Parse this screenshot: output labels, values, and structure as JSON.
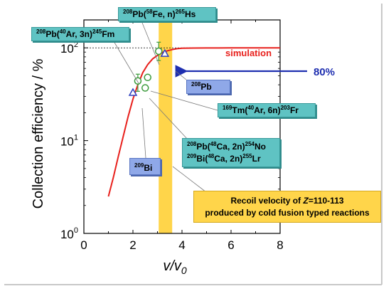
{
  "chart_data": {
    "type": "scatter",
    "xlabel": "v/v",
    "xlabel_sub": "0",
    "ylabel": "Collection efficiency / %",
    "xlim": [
      0,
      8
    ],
    "ylim": [
      1,
      200
    ],
    "yscale": "log",
    "x_ticks": [
      "0",
      "2",
      "4",
      "6",
      "8"
    ],
    "y_ticks": [
      {
        "value": 1,
        "base": "10",
        "exp": "0"
      },
      {
        "value": 10,
        "base": "10",
        "exp": "1"
      },
      {
        "value": 100,
        "base": "10",
        "exp": "2"
      }
    ],
    "reference_line": {
      "y": 100,
      "style": "dashed"
    },
    "simulation": {
      "name": "simulation",
      "color": "#e8201c",
      "x": [
        1.0,
        1.2,
        1.4,
        1.6,
        1.8,
        2.0,
        2.2,
        2.4,
        2.6,
        2.8,
        3.0,
        3.2,
        3.4,
        3.6,
        3.8,
        4.0,
        4.5,
        5.0,
        5.5,
        6.0,
        7.0,
        8.0
      ],
      "y": [
        2.5,
        4.0,
        6.7,
        11,
        18,
        28,
        40,
        54,
        66,
        76,
        83,
        89,
        93,
        96,
        98,
        99,
        99.5,
        99.7,
        99.8,
        99.9,
        100,
        100
      ]
    },
    "points": [
      {
        "x": 2.0,
        "y": 33,
        "marker": "triangle",
        "color": "#2f3fbf"
      },
      {
        "x": 3.3,
        "y": 87,
        "marker": "triangle",
        "color": "#2f3fbf"
      },
      {
        "x": 2.2,
        "y": 44,
        "marker": "circle",
        "color": "#3a9a3a",
        "err_low": 34,
        "err_high": 52
      },
      {
        "x": 2.5,
        "y": 37,
        "marker": "circle",
        "color": "#3a9a3a"
      },
      {
        "x": 2.6,
        "y": 48,
        "marker": "circle",
        "color": "#3a9a3a"
      },
      {
        "x": 3.05,
        "y": 92,
        "marker": "circle",
        "color": "#3a9a3a",
        "err_low": 73,
        "err_high": 115
      }
    ],
    "band": {
      "x_from": 3.05,
      "x_to": 3.6,
      "color": "#ffd54a"
    },
    "annotations": {
      "simulation_label": "simulation",
      "percent_label": "80%",
      "fe_hs": {
        "p1": "208",
        "t1": "Pb(",
        "p2": "58",
        "t2": "Fe, n)",
        "p3": "265",
        "t3": "Hs"
      },
      "ar_fm": {
        "p1": "208",
        "t1": "Pb(",
        "p2": "40",
        "t2": "Ar, 3n)",
        "p3": "245",
        "t3": "Fm"
      },
      "pb208": {
        "p1": "208",
        "t1": "Pb"
      },
      "tm_fr": {
        "p1": "169",
        "t1": "Tm(",
        "p2": "40",
        "t2": "Ar, 6n)",
        "p3": "203",
        "t3": "Fr"
      },
      "no_lr": {
        "line1": {
          "p1": "208",
          "t1": "Pb(",
          "p2": "48",
          "t2": "Ca, 2n)",
          "p3": "254",
          "t3": "No"
        },
        "line2": {
          "p1": "209",
          "t1": "Bi(",
          "p2": "48",
          "t2": "Ca, 2n)",
          "p3": "255",
          "t3": "Lr"
        }
      },
      "bi209": {
        "p1": "209",
        "t1": "Bi"
      },
      "recoil": {
        "a": "Recoil velocity of ",
        "z": "Z",
        "b": "=110-113",
        "line2": "produced by cold fusion typed reactions"
      }
    }
  },
  "colors": {
    "red": "#e8201c",
    "blue_arrow": "#1f2fb0",
    "teal": "#5fc3c3",
    "band": "#ffd54a"
  }
}
